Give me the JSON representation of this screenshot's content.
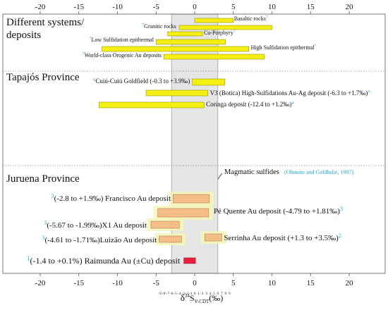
{
  "chart_data": {
    "type": "bar",
    "orientation": "horizontal-range",
    "x_range": [
      -20,
      20
    ],
    "major_ticks": [
      -20,
      -15,
      -10,
      -5,
      0,
      5,
      10,
      15,
      20
    ],
    "minor_ticks": [
      -9,
      -8,
      -7,
      -6,
      -5,
      -4,
      -3,
      -2,
      -1,
      0,
      1,
      2,
      3,
      4,
      5,
      6,
      7,
      8,
      9
    ],
    "x_label": {
      "delta": "δ",
      "superscript": "34",
      "symbol": "S",
      "subscript": "V-CDT",
      "unit": "(‰)"
    },
    "magmatic_band": [
      -3,
      3
    ],
    "magmatic_label": "Magmatic sulfides",
    "magmatic_ref": "(Ohmoto and Goldhabe, 1997)",
    "sections": [
      {
        "title_lines": [
          "Different systems/",
          "deposits"
        ],
        "bars": [
          {
            "label": "Basaltic rocks",
            "ref": "7",
            "range": [
              0,
              5
            ]
          },
          {
            "label": "Granitic rocks",
            "ref": "7",
            "range": [
              -2,
              10
            ]
          },
          {
            "label": "Cu-Porphyry",
            "ref": "7",
            "range": [
              -3.5,
              1
            ]
          },
          {
            "label": "Low Sulfidation epithermal",
            "ref": "7",
            "range": [
              -5,
              4
            ]
          },
          {
            "label": "High Sulfidation epithermal",
            "ref": "7",
            "range": [
              -12,
              7
            ]
          },
          {
            "label": "World-class Orogenic Au deposits",
            "ref": "7",
            "range": [
              -4,
              9
            ]
          }
        ]
      },
      {
        "title_lines": [
          "Tapajós Province"
        ],
        "bars": [
          {
            "label": "Cuiú-Cuiú Goldfield (-0.3 to +3.9‰)",
            "ref": "6",
            "range": [
              -0.3,
              3.9
            ]
          },
          {
            "label": "V3 (Botica) High-Sulfidations Au-Ag deposit (-6.3 to +1.7‰)",
            "ref": "5",
            "range": [
              -6.3,
              1.7
            ]
          },
          {
            "label": "Coringa deposit (-12.4 to +1.2‰)",
            "ref": "4",
            "range": [
              -12.4,
              1.2
            ]
          }
        ]
      },
      {
        "title_lines": [
          "Juruena Province"
        ],
        "bars": [
          {
            "label": "(-2.8 to +1.9‰) Francisco Au deposit",
            "ref": "3",
            "range": [
              -2.8,
              1.9
            ]
          },
          {
            "label": "Pé Quente Au deposit (-4.79 to +1.81‰)",
            "ref": "3",
            "range": [
              -4.79,
              1.81
            ]
          },
          {
            "label": "(-5.67 to -1.99‰)X1 Au deposit",
            "ref": "3",
            "range": [
              -5.67,
              -1.99
            ]
          },
          {
            "label": "Serrinha Au deposit (+1.3 to +3.5‰)",
            "ref": "2",
            "range": [
              1.3,
              3.5
            ]
          },
          {
            "label": "(-4.61 to -1.71‰)Luizão Au deposit",
            "ref": "3",
            "range": [
              -4.61,
              -1.71
            ]
          },
          {
            "label": "(-1.4 to +0.1%) Raimunda Au (±Cu) deposit",
            "ref": "1",
            "range": [
              -1.4,
              0.1
            ]
          }
        ]
      }
    ],
    "colors": {
      "yellow_bar": "#f5ee12",
      "juruena_bar": "#f3bf86",
      "raimunda_bar": "#e8203f",
      "magmatic_band": "#e5e5e5",
      "ref_number": "#2aa6d6",
      "glow": "#f6f6b6"
    }
  }
}
